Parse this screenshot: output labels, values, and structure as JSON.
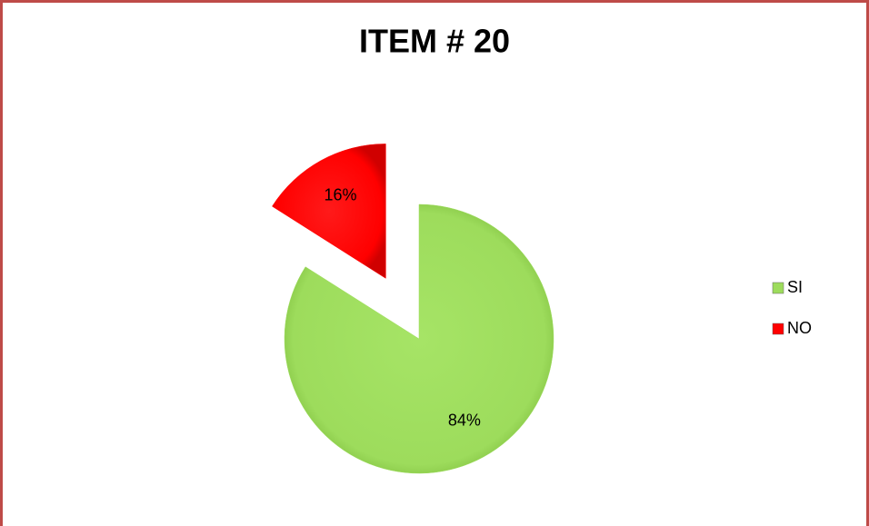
{
  "chart_data": {
    "type": "pie",
    "title": "ITEM # 20",
    "categories": [
      "SI",
      "NO"
    ],
    "values": [
      84,
      16
    ],
    "value_labels": [
      "84%",
      "16%"
    ],
    "colors": [
      "#9ddc5c",
      "#ff0000"
    ],
    "legend": "right"
  }
}
